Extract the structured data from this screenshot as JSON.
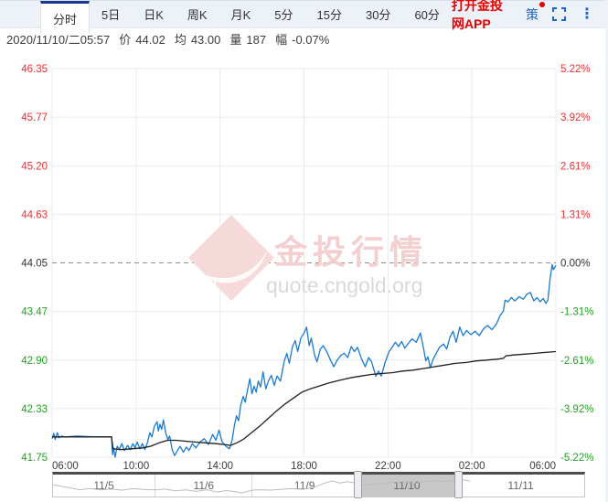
{
  "tabs": {
    "items": [
      {
        "label": "分时",
        "active": true
      },
      {
        "label": "5日",
        "active": false
      },
      {
        "label": "日K",
        "active": false
      },
      {
        "label": "周K",
        "active": false
      },
      {
        "label": "月K",
        "active": false
      },
      {
        "label": "5分",
        "active": false
      },
      {
        "label": "15分",
        "active": false
      },
      {
        "label": "30分",
        "active": false
      },
      {
        "label": "60分",
        "active": false
      }
    ],
    "app_link": "打开金投网APP",
    "strategy": "策",
    "more_glyph": "⋮",
    "icons": [
      "fullscreen-icon",
      "kebab-icon",
      "notification-dot"
    ]
  },
  "info": {
    "datetime": "2020/11/10/二05:57",
    "fields": [
      {
        "label": "价",
        "value": "44.02"
      },
      {
        "label": "均",
        "value": "43.00"
      },
      {
        "label": "量",
        "value": "187"
      },
      {
        "label": "幅",
        "value": "-0.07%"
      }
    ]
  },
  "watermark": {
    "logo_text": "Au",
    "brand": "金投行情",
    "url": "quote.cngold.org"
  },
  "colors": {
    "up": "#e53333",
    "down": "#21a121",
    "flat": "#333333",
    "price_line": "#1a7bd0",
    "avg_line": "#1f1f1f",
    "grid": "#ebebeb",
    "baseline_dash": "#8f8f8f",
    "accent_blue": "#2464c4",
    "brand_red": "#e60000"
  },
  "chart_data": {
    "type": "line",
    "title": "",
    "xlabel": "",
    "ylabel": "",
    "x_unit": "hours from 06:00 (2020/11/09 06:00 → 2020/11/10 06:00)",
    "x_range_hours": [
      0,
      24
    ],
    "ylim": [
      41.75,
      46.35
    ],
    "baseline": 44.05,
    "grid": true,
    "left_ticks": [
      46.35,
      45.77,
      45.2,
      44.63,
      44.05,
      43.47,
      42.9,
      42.33,
      41.75
    ],
    "right_ticks": [
      "5.22%",
      "3.92%",
      "2.61%",
      "1.31%",
      "0.00%",
      "-1.31%",
      "-2.61%",
      "-3.92%",
      "-5.22%"
    ],
    "x_ticks": [
      "06:00",
      "10:00",
      "14:00",
      "18:00",
      "22:00",
      "02:00",
      "06:00"
    ],
    "series": [
      {
        "name": "price",
        "points": [
          [
            0,
            41.97
          ],
          [
            0.08,
            42.03
          ],
          [
            0.15,
            41.96
          ],
          [
            0.25,
            42.04
          ],
          [
            0.33,
            41.98
          ],
          [
            0.45,
            42.0
          ],
          [
            0.6,
            41.99
          ],
          [
            1.2,
            42.0
          ],
          [
            2.0,
            41.99
          ],
          [
            2.83,
            41.99
          ],
          [
            2.88,
            41.78
          ],
          [
            2.93,
            41.86
          ],
          [
            3.0,
            41.75
          ],
          [
            3.1,
            41.88
          ],
          [
            3.2,
            41.84
          ],
          [
            3.32,
            41.91
          ],
          [
            3.45,
            41.83
          ],
          [
            3.6,
            41.89
          ],
          [
            3.72,
            41.84
          ],
          [
            3.85,
            41.91
          ],
          [
            3.95,
            41.86
          ],
          [
            4.05,
            41.93
          ],
          [
            4.18,
            41.85
          ],
          [
            4.3,
            41.91
          ],
          [
            4.42,
            41.84
          ],
          [
            4.55,
            41.93
          ],
          [
            4.65,
            42.04
          ],
          [
            4.75,
            41.99
          ],
          [
            4.88,
            42.12
          ],
          [
            5.0,
            42.17
          ],
          [
            5.06,
            42.06
          ],
          [
            5.14,
            42.14
          ],
          [
            5.22,
            42.08
          ],
          [
            5.3,
            42.19
          ],
          [
            5.42,
            42.03
          ],
          [
            5.52,
            41.96
          ],
          [
            5.6,
            42.0
          ],
          [
            5.72,
            41.84
          ],
          [
            5.84,
            41.77
          ],
          [
            5.95,
            41.82
          ],
          [
            6.1,
            41.88
          ],
          [
            6.25,
            41.81
          ],
          [
            6.4,
            41.87
          ],
          [
            6.52,
            41.83
          ],
          [
            6.68,
            41.91
          ],
          [
            6.85,
            41.86
          ],
          [
            7.05,
            41.93
          ],
          [
            7.25,
            41.97
          ],
          [
            7.45,
            41.9
          ],
          [
            7.65,
            42.02
          ],
          [
            7.8,
            41.95
          ],
          [
            7.95,
            42.07
          ],
          [
            8.1,
            41.93
          ],
          [
            8.28,
            41.88
          ],
          [
            8.45,
            41.85
          ],
          [
            8.58,
            41.96
          ],
          [
            8.68,
            42.12
          ],
          [
            8.78,
            42.24
          ],
          [
            8.88,
            42.18
          ],
          [
            8.98,
            42.36
          ],
          [
            9.1,
            42.47
          ],
          [
            9.2,
            42.4
          ],
          [
            9.32,
            42.56
          ],
          [
            9.42,
            42.68
          ],
          [
            9.52,
            42.5
          ],
          [
            9.62,
            42.59
          ],
          [
            9.72,
            42.52
          ],
          [
            9.82,
            42.65
          ],
          [
            9.93,
            42.58
          ],
          [
            10.05,
            42.76
          ],
          [
            10.18,
            42.56
          ],
          [
            10.32,
            42.66
          ],
          [
            10.45,
            42.72
          ],
          [
            10.58,
            42.6
          ],
          [
            10.72,
            42.71
          ],
          [
            10.88,
            42.65
          ],
          [
            11.05,
            42.88
          ],
          [
            11.18,
            42.98
          ],
          [
            11.3,
            42.86
          ],
          [
            11.45,
            43.06
          ],
          [
            11.58,
            43.13
          ],
          [
            11.7,
            43.0
          ],
          [
            11.85,
            43.16
          ],
          [
            12.0,
            43.22
          ],
          [
            12.12,
            43.29
          ],
          [
            12.25,
            43.07
          ],
          [
            12.35,
            43.16
          ],
          [
            12.5,
            42.96
          ],
          [
            12.62,
            42.88
          ],
          [
            12.78,
            43.03
          ],
          [
            12.92,
            43.07
          ],
          [
            13.08,
            43.0
          ],
          [
            13.28,
            42.89
          ],
          [
            13.42,
            42.82
          ],
          [
            13.58,
            42.9
          ],
          [
            13.78,
            42.96
          ],
          [
            13.92,
            42.98
          ],
          [
            14.08,
            42.93
          ],
          [
            14.25,
            43.06
          ],
          [
            14.4,
            43.0
          ],
          [
            14.55,
            43.05
          ],
          [
            14.75,
            42.91
          ],
          [
            14.92,
            42.82
          ],
          [
            15.08,
            42.93
          ],
          [
            15.22,
            42.88
          ],
          [
            15.42,
            42.71
          ],
          [
            15.55,
            42.77
          ],
          [
            15.68,
            42.71
          ],
          [
            15.85,
            42.86
          ],
          [
            16.05,
            43.0
          ],
          [
            16.2,
            43.05
          ],
          [
            16.35,
            43.11
          ],
          [
            16.5,
            43.06
          ],
          [
            16.65,
            43.12
          ],
          [
            16.8,
            43.04
          ],
          [
            16.95,
            43.09
          ],
          [
            17.15,
            43.15
          ],
          [
            17.35,
            43.11
          ],
          [
            17.55,
            43.22
          ],
          [
            17.7,
            43.03
          ],
          [
            17.8,
            42.89
          ],
          [
            17.9,
            42.94
          ],
          [
            18.02,
            42.81
          ],
          [
            18.15,
            42.91
          ],
          [
            18.3,
            42.98
          ],
          [
            18.45,
            43.05
          ],
          [
            18.65,
            43.09
          ],
          [
            18.8,
            43.03
          ],
          [
            18.95,
            43.17
          ],
          [
            19.1,
            43.24
          ],
          [
            19.25,
            43.11
          ],
          [
            19.42,
            43.29
          ],
          [
            19.58,
            43.19
          ],
          [
            19.75,
            43.25
          ],
          [
            19.95,
            43.2
          ],
          [
            20.15,
            43.24
          ],
          [
            20.35,
            43.19
          ],
          [
            20.55,
            43.27
          ],
          [
            20.75,
            43.31
          ],
          [
            20.95,
            43.26
          ],
          [
            21.15,
            43.32
          ],
          [
            21.35,
            43.43
          ],
          [
            21.5,
            43.48
          ],
          [
            21.58,
            43.61
          ],
          [
            21.72,
            43.59
          ],
          [
            21.88,
            43.64
          ],
          [
            22.05,
            43.6
          ],
          [
            22.25,
            43.65
          ],
          [
            22.45,
            43.62
          ],
          [
            22.62,
            43.68
          ],
          [
            22.78,
            43.7
          ],
          [
            22.95,
            43.6
          ],
          [
            23.1,
            43.64
          ],
          [
            23.25,
            43.59
          ],
          [
            23.4,
            43.63
          ],
          [
            23.52,
            43.57
          ],
          [
            23.62,
            43.61
          ],
          [
            23.72,
            43.86
          ],
          [
            23.82,
            44.03
          ],
          [
            23.88,
            43.97
          ],
          [
            24.0,
            44.02
          ]
        ]
      },
      {
        "name": "average",
        "points": [
          [
            0,
            41.99
          ],
          [
            2.83,
            41.99
          ],
          [
            2.9,
            41.85
          ],
          [
            3.3,
            41.84
          ],
          [
            3.8,
            41.85
          ],
          [
            4.3,
            41.86
          ],
          [
            4.7,
            41.88
          ],
          [
            5.1,
            41.92
          ],
          [
            5.5,
            41.95
          ],
          [
            5.9,
            41.95
          ],
          [
            6.3,
            41.94
          ],
          [
            6.8,
            41.93
          ],
          [
            7.3,
            41.92
          ],
          [
            7.8,
            41.91
          ],
          [
            8.2,
            41.9
          ],
          [
            8.5,
            41.89
          ],
          [
            8.8,
            41.92
          ],
          [
            9.1,
            41.96
          ],
          [
            9.5,
            42.04
          ],
          [
            9.9,
            42.12
          ],
          [
            10.3,
            42.21
          ],
          [
            10.7,
            42.3
          ],
          [
            11.1,
            42.38
          ],
          [
            11.5,
            42.45
          ],
          [
            11.9,
            42.52
          ],
          [
            12.3,
            42.56
          ],
          [
            12.7,
            42.59
          ],
          [
            13.2,
            42.63
          ],
          [
            13.7,
            42.66
          ],
          [
            14.2,
            42.69
          ],
          [
            14.7,
            42.71
          ],
          [
            15.2,
            42.73
          ],
          [
            15.7,
            42.74
          ],
          [
            16.2,
            42.75
          ],
          [
            16.7,
            42.77
          ],
          [
            17.2,
            42.78
          ],
          [
            17.7,
            42.8
          ],
          [
            18.2,
            42.82
          ],
          [
            18.7,
            42.84
          ],
          [
            19.2,
            42.86
          ],
          [
            19.7,
            42.87
          ],
          [
            20.2,
            42.89
          ],
          [
            20.7,
            42.9
          ],
          [
            21.2,
            42.91
          ],
          [
            21.5,
            42.92
          ],
          [
            21.62,
            42.95
          ],
          [
            22.0,
            42.96
          ],
          [
            22.5,
            42.97
          ],
          [
            23.0,
            42.98
          ],
          [
            23.5,
            42.99
          ],
          [
            24.0,
            43.0
          ]
        ]
      }
    ]
  },
  "navigator": {
    "days": [
      {
        "label": "11/5",
        "width_pct": 19.3,
        "selected": false
      },
      {
        "label": "11/6",
        "width_pct": 18.3,
        "selected": false
      },
      {
        "label": "11/9",
        "width_pct": 19.7,
        "selected": false
      },
      {
        "label": "11/10",
        "width_pct": 18.8,
        "selected": true
      },
      {
        "label": "11/11",
        "width_pct": 23.9,
        "selected": false
      }
    ],
    "sparkline": [
      [
        0,
        48
      ],
      [
        1.5,
        55
      ],
      [
        3,
        62
      ],
      [
        5,
        72
      ],
      [
        7,
        66
      ],
      [
        9,
        73
      ],
      [
        11,
        69
      ],
      [
        13,
        74
      ],
      [
        15,
        67
      ],
      [
        17,
        71
      ],
      [
        19.3,
        73
      ],
      [
        21,
        69
      ],
      [
        23,
        77
      ],
      [
        25,
        73
      ],
      [
        27,
        80
      ],
      [
        29,
        72
      ],
      [
        31,
        84
      ],
      [
        32.5,
        76
      ],
      [
        34,
        80
      ],
      [
        35.5,
        88
      ],
      [
        37,
        78
      ],
      [
        37.6,
        74
      ],
      [
        39,
        72
      ],
      [
        41,
        74
      ],
      [
        43,
        70
      ],
      [
        45,
        67
      ],
      [
        47,
        70
      ],
      [
        49,
        62
      ],
      [
        51,
        42
      ],
      [
        52.5,
        30
      ],
      [
        54,
        40
      ],
      [
        55.5,
        34
      ],
      [
        57.3,
        42
      ],
      [
        58.5,
        50
      ],
      [
        60,
        46
      ],
      [
        62,
        42
      ],
      [
        64,
        36
      ],
      [
        66,
        34
      ],
      [
        68,
        40
      ],
      [
        70,
        34
      ],
      [
        72,
        30
      ],
      [
        74,
        33
      ],
      [
        76.1,
        27
      ],
      [
        77,
        24
      ],
      [
        78.5,
        31
      ]
    ]
  }
}
